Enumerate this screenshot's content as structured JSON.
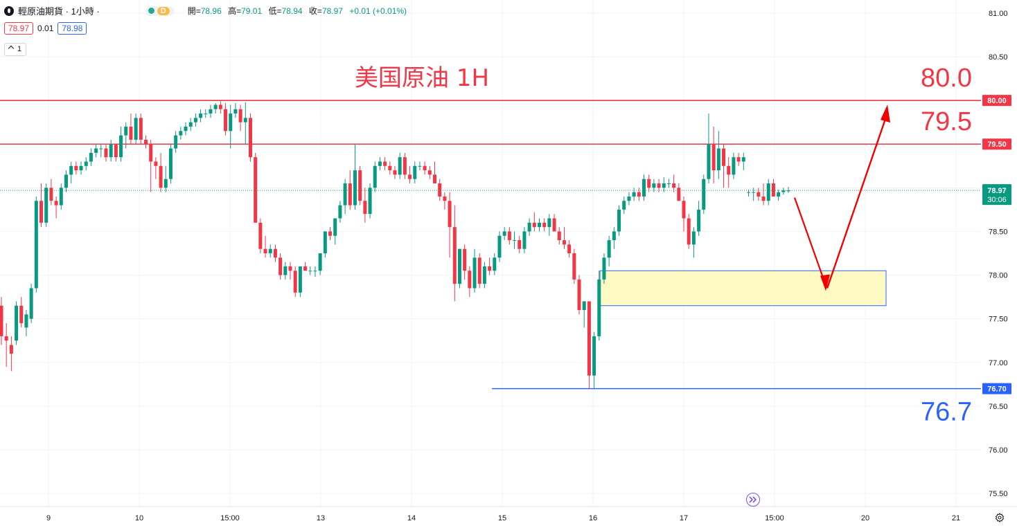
{
  "header": {
    "symbol_title": "輕原油期貨 · 1小時 ·",
    "delay_badge": "D",
    "ohlc": {
      "open_label": "開",
      "open": "78.96",
      "high_label": "高",
      "high": "79.01",
      "low_label": "低",
      "low": "78.94",
      "close_label": "收",
      "close": "78.97",
      "change": "+0.01 (+0.01%)"
    }
  },
  "quote": {
    "sell": "78.97",
    "spread": "0.01",
    "buy": "78.98"
  },
  "indicator_toggle": "1",
  "colors": {
    "up": "#089981",
    "down": "#f23645",
    "resistance": "#f23645",
    "support": "#2962ff",
    "zone_fill": "#fff9c4",
    "zone_border": "#2962ff",
    "arrow": "#f20000"
  },
  "icons": {
    "goto_realtime": "double-chevron-right-icon",
    "settings": "gear-icon",
    "logo": "oil-drop-icon"
  },
  "chart_data": {
    "type": "candlestick",
    "title": "美国原油 1H",
    "y_axis": {
      "ticks": [
        81.0,
        80.5,
        80.0,
        79.5,
        79.0,
        78.5,
        78.0,
        77.5,
        77.0,
        76.5,
        76.0,
        75.5
      ],
      "tick_labels": [
        "81.00",
        "80.50",
        "80.00",
        "79.50",
        "79.00",
        "78.50",
        "78.00",
        "77.50",
        "77.00",
        "76.50",
        "76.00",
        "75.50"
      ],
      "range": [
        75.35,
        81.15
      ],
      "side": "right"
    },
    "x_axis": {
      "tick_labels": [
        "9",
        "10",
        "15:00",
        "13",
        "14",
        "15",
        "16",
        "17",
        "15:00",
        "20",
        "21"
      ]
    },
    "grid": true,
    "candles_ohlc": [
      [
        77.65,
        77.75,
        77.2,
        77.3
      ],
      [
        77.3,
        77.45,
        76.95,
        77.25
      ],
      [
        77.2,
        77.3,
        76.9,
        77.1
      ],
      [
        77.25,
        77.7,
        77.2,
        77.65
      ],
      [
        77.65,
        77.75,
        77.4,
        77.45
      ],
      [
        77.4,
        77.6,
        77.3,
        77.55
      ],
      [
        77.5,
        77.9,
        77.45,
        77.85
      ],
      [
        77.85,
        78.9,
        77.8,
        78.85
      ],
      [
        78.85,
        79.05,
        78.55,
        78.6
      ],
      [
        78.6,
        79.05,
        78.55,
        79.0
      ],
      [
        79.0,
        79.1,
        78.8,
        78.85
      ],
      [
        78.85,
        78.9,
        78.65,
        78.8
      ],
      [
        78.8,
        79.05,
        78.75,
        79.0
      ],
      [
        79.0,
        79.2,
        78.95,
        79.15
      ],
      [
        79.15,
        79.3,
        79.05,
        79.25
      ],
      [
        79.25,
        79.3,
        79.15,
        79.2
      ],
      [
        79.2,
        79.3,
        79.15,
        79.25
      ],
      [
        79.25,
        79.35,
        79.2,
        79.3
      ],
      [
        79.3,
        79.45,
        79.25,
        79.4
      ],
      [
        79.4,
        79.5,
        79.35,
        79.45
      ],
      [
        79.45,
        79.5,
        79.35,
        79.45
      ],
      [
        79.45,
        79.5,
        79.3,
        79.35
      ],
      [
        79.35,
        79.55,
        79.3,
        79.5
      ],
      [
        79.5,
        79.4,
        79.3,
        79.35
      ],
      [
        79.35,
        79.7,
        79.3,
        79.6
      ],
      [
        79.6,
        79.75,
        79.45,
        79.7
      ],
      [
        79.7,
        79.85,
        79.5,
        79.55
      ],
      [
        79.55,
        79.85,
        79.5,
        79.8
      ],
      [
        79.8,
        79.85,
        79.5,
        79.55
      ],
      [
        79.55,
        79.6,
        79.45,
        79.5
      ],
      [
        79.5,
        79.55,
        78.95,
        79.3
      ],
      [
        79.3,
        79.35,
        79.1,
        79.25
      ],
      [
        79.25,
        79.4,
        78.95,
        79.0
      ],
      [
        79.0,
        79.25,
        78.95,
        79.1
      ],
      [
        79.1,
        79.5,
        79.05,
        79.45
      ],
      [
        79.45,
        79.65,
        79.4,
        79.6
      ],
      [
        79.6,
        79.7,
        79.55,
        79.65
      ],
      [
        79.65,
        79.75,
        79.6,
        79.7
      ],
      [
        79.7,
        79.8,
        79.65,
        79.75
      ],
      [
        79.75,
        79.85,
        79.7,
        79.8
      ],
      [
        79.8,
        79.9,
        79.75,
        79.85
      ],
      [
        79.85,
        79.9,
        79.8,
        79.85
      ],
      [
        79.85,
        79.95,
        79.8,
        79.9
      ],
      [
        79.9,
        79.97,
        79.85,
        79.95
      ],
      [
        79.95,
        79.99,
        79.85,
        79.9
      ],
      [
        79.9,
        79.97,
        79.6,
        79.65
      ],
      [
        79.65,
        79.95,
        79.45,
        79.85
      ],
      [
        79.85,
        79.97,
        79.8,
        79.9
      ],
      [
        79.9,
        79.95,
        79.65,
        79.75
      ],
      [
        79.75,
        79.98,
        79.5,
        79.8
      ],
      [
        79.8,
        79.85,
        79.3,
        79.35
      ],
      [
        79.35,
        79.4,
        78.6,
        78.6
      ],
      [
        78.6,
        78.65,
        78.25,
        78.3
      ],
      [
        78.3,
        78.45,
        78.2,
        78.25
      ],
      [
        78.25,
        78.35,
        78.2,
        78.3
      ],
      [
        78.3,
        78.35,
        78.15,
        78.2
      ],
      [
        78.2,
        78.25,
        77.95,
        78.0
      ],
      [
        78.0,
        78.15,
        77.95,
        78.1
      ],
      [
        78.1,
        78.15,
        77.95,
        78.05
      ],
      [
        78.05,
        78.1,
        77.75,
        77.8
      ],
      [
        77.8,
        78.1,
        77.75,
        78.1
      ],
      [
        78.1,
        78.15,
        78.05,
        78.05
      ],
      [
        78.05,
        78.1,
        78.0,
        78.05
      ],
      [
        78.05,
        78.1,
        77.98,
        78.05
      ],
      [
        78.05,
        78.25,
        78.0,
        78.25
      ],
      [
        78.25,
        78.5,
        78.2,
        78.5
      ],
      [
        78.5,
        78.55,
        78.4,
        78.45
      ],
      [
        78.45,
        78.65,
        78.35,
        78.65
      ],
      [
        78.65,
        78.85,
        78.6,
        78.8
      ],
      [
        78.8,
        79.1,
        78.7,
        79.05
      ],
      [
        79.05,
        79.2,
        78.75,
        78.8
      ],
      [
        78.8,
        79.5,
        78.75,
        79.2
      ],
      [
        79.2,
        79.25,
        78.8,
        78.85
      ],
      [
        78.85,
        79.0,
        78.6,
        78.7
      ],
      [
        78.7,
        79.05,
        78.65,
        79.0
      ],
      [
        79.0,
        79.3,
        78.95,
        79.25
      ],
      [
        79.25,
        79.35,
        79.2,
        79.3
      ],
      [
        79.3,
        79.35,
        79.2,
        79.25
      ],
      [
        79.25,
        79.3,
        79.15,
        79.2
      ],
      [
        79.2,
        79.25,
        79.1,
        79.15
      ],
      [
        79.15,
        79.4,
        79.1,
        79.35
      ],
      [
        79.35,
        79.4,
        79.1,
        79.15
      ],
      [
        79.15,
        79.25,
        79.05,
        79.1
      ],
      [
        79.1,
        79.3,
        79.05,
        79.25
      ],
      [
        79.25,
        79.3,
        79.2,
        79.25
      ],
      [
        79.25,
        79.3,
        79.15,
        79.2
      ],
      [
        79.2,
        79.25,
        79.1,
        79.15
      ],
      [
        79.15,
        79.3,
        79.05,
        79.05
      ],
      [
        79.05,
        79.1,
        78.85,
        78.9
      ],
      [
        78.9,
        78.95,
        78.75,
        78.85
      ],
      [
        78.85,
        78.95,
        78.2,
        78.55
      ],
      [
        78.55,
        78.8,
        77.7,
        77.9
      ],
      [
        77.9,
        78.3,
        77.85,
        78.3
      ],
      [
        78.3,
        78.35,
        77.95,
        78.05
      ],
      [
        78.05,
        78.1,
        77.75,
        77.85
      ],
      [
        77.85,
        78.3,
        77.8,
        78.2
      ],
      [
        78.2,
        78.25,
        77.85,
        77.9
      ],
      [
        77.9,
        78.15,
        77.85,
        78.1
      ],
      [
        78.1,
        78.2,
        78.0,
        78.05
      ],
      [
        78.05,
        78.25,
        78.0,
        78.2
      ],
      [
        78.2,
        78.5,
        78.15,
        78.45
      ],
      [
        78.45,
        78.55,
        78.4,
        78.5
      ],
      [
        78.5,
        78.55,
        78.35,
        78.4
      ],
      [
        78.4,
        78.5,
        78.3,
        78.4
      ],
      [
        78.4,
        78.45,
        78.25,
        78.3
      ],
      [
        78.3,
        78.55,
        78.25,
        78.5
      ],
      [
        78.5,
        78.65,
        78.45,
        78.6
      ],
      [
        78.6,
        78.72,
        78.5,
        78.55
      ],
      [
        78.55,
        78.65,
        78.5,
        78.6
      ],
      [
        78.6,
        78.65,
        78.5,
        78.55
      ],
      [
        78.55,
        78.7,
        78.45,
        78.65
      ],
      [
        78.65,
        78.7,
        78.5,
        78.5
      ],
      [
        78.5,
        78.55,
        78.35,
        78.4
      ],
      [
        78.4,
        78.55,
        78.3,
        78.35
      ],
      [
        78.35,
        78.4,
        78.2,
        78.25
      ],
      [
        78.25,
        78.3,
        77.9,
        77.95
      ],
      [
        77.95,
        78.0,
        77.55,
        77.6
      ],
      [
        77.6,
        77.7,
        77.4,
        77.7
      ],
      [
        77.7,
        77.7,
        76.7,
        76.85
      ],
      [
        76.85,
        77.35,
        76.7,
        77.3
      ],
      [
        77.3,
        78.05,
        77.25,
        77.95
      ],
      [
        77.95,
        78.25,
        77.9,
        78.2
      ],
      [
        78.2,
        78.45,
        78.1,
        78.4
      ],
      [
        78.4,
        78.55,
        78.3,
        78.5
      ],
      [
        78.5,
        78.8,
        78.45,
        78.75
      ],
      [
        78.75,
        78.9,
        78.7,
        78.85
      ],
      [
        78.85,
        78.95,
        78.8,
        78.9
      ],
      [
        78.9,
        79.0,
        78.85,
        78.95
      ],
      [
        78.95,
        79.0,
        78.85,
        78.9
      ],
      [
        78.9,
        79.15,
        78.85,
        79.1
      ],
      [
        79.1,
        79.15,
        78.95,
        79.0
      ],
      [
        79.0,
        79.1,
        78.95,
        79.05
      ],
      [
        79.05,
        79.1,
        78.95,
        79.0
      ],
      [
        79.0,
        79.12,
        78.95,
        79.05
      ],
      [
        79.05,
        79.1,
        79.0,
        79.05
      ],
      [
        79.05,
        79.15,
        78.95,
        79.0
      ],
      [
        79.0,
        79.05,
        78.85,
        78.85
      ],
      [
        78.85,
        78.9,
        78.5,
        78.65
      ],
      [
        78.65,
        78.7,
        78.3,
        78.35
      ],
      [
        78.35,
        78.55,
        78.2,
        78.5
      ],
      [
        78.5,
        78.85,
        78.45,
        78.75
      ],
      [
        78.75,
        79.15,
        78.7,
        79.1
      ],
      [
        79.1,
        79.85,
        79.05,
        79.5
      ],
      [
        79.5,
        79.7,
        79.05,
        79.2
      ],
      [
        79.2,
        79.65,
        79.1,
        79.45
      ],
      [
        79.45,
        79.5,
        79.0,
        79.25
      ],
      [
        79.25,
        79.35,
        79.0,
        79.15
      ],
      [
        79.15,
        79.4,
        79.1,
        79.35
      ],
      [
        79.35,
        79.4,
        79.25,
        79.3
      ],
      [
        79.3,
        79.4,
        79.2,
        79.35
      ],
      [
        78.95,
        78.98,
        78.9,
        78.95
      ],
      [
        78.95,
        79.0,
        78.85,
        78.95
      ],
      [
        78.95,
        79.0,
        78.85,
        78.9
      ],
      [
        78.9,
        79.05,
        78.8,
        78.85
      ],
      [
        78.85,
        79.1,
        78.8,
        79.05
      ],
      [
        79.05,
        79.1,
        78.9,
        78.9
      ],
      [
        78.9,
        78.98,
        78.85,
        78.95
      ],
      [
        78.95,
        79.0,
        78.92,
        78.97
      ],
      [
        78.96,
        79.01,
        78.94,
        78.97
      ]
    ],
    "levels": [
      {
        "price": 80.0,
        "label": "80.00",
        "annotation": "80.0",
        "color": "#f23645"
      },
      {
        "price": 79.5,
        "label": "79.50",
        "annotation": "79.5",
        "color": "#f23645"
      },
      {
        "price": 76.7,
        "label": "76.70",
        "annotation": "76.7",
        "color": "#2962ff"
      }
    ],
    "last_price": {
      "price": 78.97,
      "label": "78.97",
      "countdown": "30:06"
    },
    "zone": {
      "low": 77.65,
      "high": 78.05
    },
    "projection_path_prices": [
      78.95,
      77.85,
      80.0
    ]
  }
}
